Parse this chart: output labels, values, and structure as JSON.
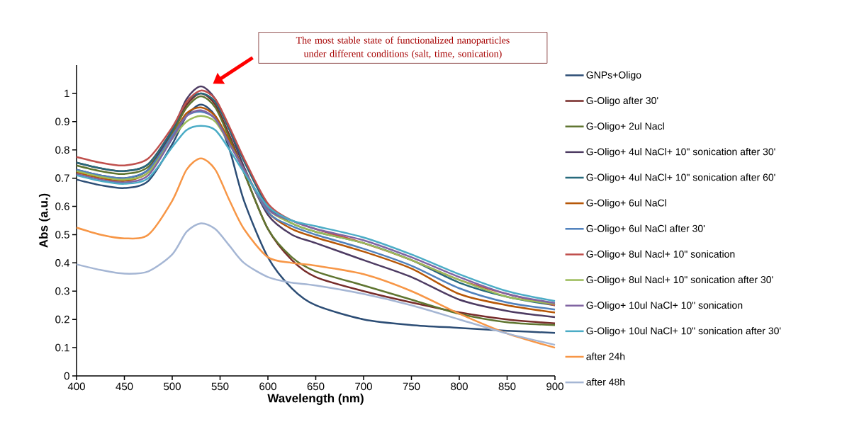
{
  "chart_data": {
    "type": "line",
    "xlabel": "Wavelength (nm)",
    "ylabel": "Abs (a.u.)",
    "annotations": [
      "The most stable state of functionalized nanoparticles under different conditions (salt, time, sonication)"
    ],
    "x": [
      400,
      425,
      450,
      475,
      500,
      515,
      530,
      545,
      560,
      575,
      600,
      625,
      650,
      700,
      750,
      800,
      850,
      900
    ],
    "xlim": [
      400,
      900
    ],
    "xticks": [
      400,
      450,
      500,
      550,
      600,
      650,
      700,
      750,
      800,
      850,
      900
    ],
    "ylim": [
      0,
      1.1
    ],
    "yticks": [
      0,
      0.1,
      0.2,
      0.3,
      0.4,
      0.5,
      0.6,
      0.7,
      0.8,
      0.9,
      1
    ],
    "grid": false,
    "legend": "right",
    "marker": "none",
    "line_style": "solid",
    "series": [
      {
        "name": "GNPs+Oligo",
        "color": "#2c4d75",
        "values": [
          0.695,
          0.675,
          0.665,
          0.69,
          0.82,
          0.92,
          0.96,
          0.92,
          0.8,
          0.62,
          0.42,
          0.31,
          0.25,
          0.2,
          0.18,
          0.17,
          0.16,
          0.152
        ]
      },
      {
        "name": "G-Oligo after 30'",
        "color": "#772c2a",
        "values": [
          0.755,
          0.735,
          0.725,
          0.75,
          0.87,
          0.96,
          1.0,
          0.96,
          0.85,
          0.72,
          0.52,
          0.41,
          0.35,
          0.3,
          0.26,
          0.225,
          0.2,
          0.186
        ]
      },
      {
        "name": "G-Oligo+ 2ul Nacl",
        "color": "#5f7530",
        "values": [
          0.745,
          0.725,
          0.715,
          0.74,
          0.86,
          0.95,
          0.99,
          0.95,
          0.84,
          0.72,
          0.52,
          0.42,
          0.37,
          0.32,
          0.27,
          0.22,
          0.19,
          0.18
        ]
      },
      {
        "name": "G-Oligo+ 4ul NaCl+ 10\" sonication after 30'",
        "color": "#4d3b62",
        "values": [
          0.73,
          0.71,
          0.7,
          0.73,
          0.87,
          0.98,
          1.025,
          0.98,
          0.87,
          0.74,
          0.57,
          0.5,
          0.47,
          0.41,
          0.35,
          0.27,
          0.23,
          0.208
        ]
      },
      {
        "name": "G-Oligo+ 4ul NaCl+ 10\" sonication after 60'",
        "color": "#276a7c",
        "values": [
          0.755,
          0.735,
          0.725,
          0.75,
          0.87,
          0.97,
          1.0,
          0.97,
          0.87,
          0.76,
          0.6,
          0.54,
          0.51,
          0.47,
          0.41,
          0.33,
          0.28,
          0.25
        ]
      },
      {
        "name": "G-Oligo+ 6ul NaCl",
        "color": "#b65708",
        "values": [
          0.72,
          0.7,
          0.69,
          0.72,
          0.85,
          0.93,
          0.95,
          0.92,
          0.83,
          0.73,
          0.58,
          0.52,
          0.49,
          0.44,
          0.38,
          0.29,
          0.25,
          0.224
        ]
      },
      {
        "name": "G-Oligo+ 6ul NaCl after 30'",
        "color": "#4f81bd",
        "values": [
          0.73,
          0.71,
          0.7,
          0.73,
          0.85,
          0.92,
          0.935,
          0.91,
          0.82,
          0.73,
          0.58,
          0.53,
          0.5,
          0.45,
          0.39,
          0.31,
          0.26,
          0.235
        ]
      },
      {
        "name": "G-Oligo+ 8ul Nacl+ 10\" sonication",
        "color": "#c0504d",
        "values": [
          0.775,
          0.755,
          0.745,
          0.77,
          0.88,
          0.97,
          1.01,
          0.98,
          0.88,
          0.77,
          0.61,
          0.55,
          0.52,
          0.47,
          0.41,
          0.34,
          0.29,
          0.25
        ]
      },
      {
        "name": "G-Oligo+ 8ul Nacl+ 10\" sonication after 30'",
        "color": "#9bbb59",
        "values": [
          0.725,
          0.705,
          0.695,
          0.72,
          0.84,
          0.9,
          0.92,
          0.9,
          0.82,
          0.73,
          0.59,
          0.54,
          0.51,
          0.47,
          0.41,
          0.34,
          0.28,
          0.255
        ]
      },
      {
        "name": "G-Oligo+ 10ul NaCl+ 10\" sonication",
        "color": "#8064a2",
        "values": [
          0.715,
          0.695,
          0.685,
          0.71,
          0.84,
          0.92,
          0.94,
          0.91,
          0.82,
          0.73,
          0.59,
          0.55,
          0.52,
          0.48,
          0.42,
          0.35,
          0.29,
          0.258
        ]
      },
      {
        "name": "G-Oligo+ 10ul NaCl+ 10\" sonication after 30'",
        "color": "#4bacc6",
        "values": [
          0.71,
          0.69,
          0.68,
          0.7,
          0.81,
          0.87,
          0.885,
          0.87,
          0.8,
          0.72,
          0.6,
          0.55,
          0.53,
          0.49,
          0.43,
          0.36,
          0.3,
          0.265
        ]
      },
      {
        "name": "after 24h",
        "color": "#f79646",
        "values": [
          0.525,
          0.5,
          0.487,
          0.5,
          0.62,
          0.73,
          0.77,
          0.73,
          0.62,
          0.52,
          0.42,
          0.4,
          0.39,
          0.36,
          0.3,
          0.22,
          0.15,
          0.1
        ]
      },
      {
        "name": "after 48h",
        "color": "#a5b6d4",
        "values": [
          0.395,
          0.375,
          0.362,
          0.37,
          0.43,
          0.51,
          0.54,
          0.52,
          0.46,
          0.4,
          0.35,
          0.33,
          0.32,
          0.29,
          0.25,
          0.2,
          0.15,
          0.11
        ]
      }
    ]
  }
}
